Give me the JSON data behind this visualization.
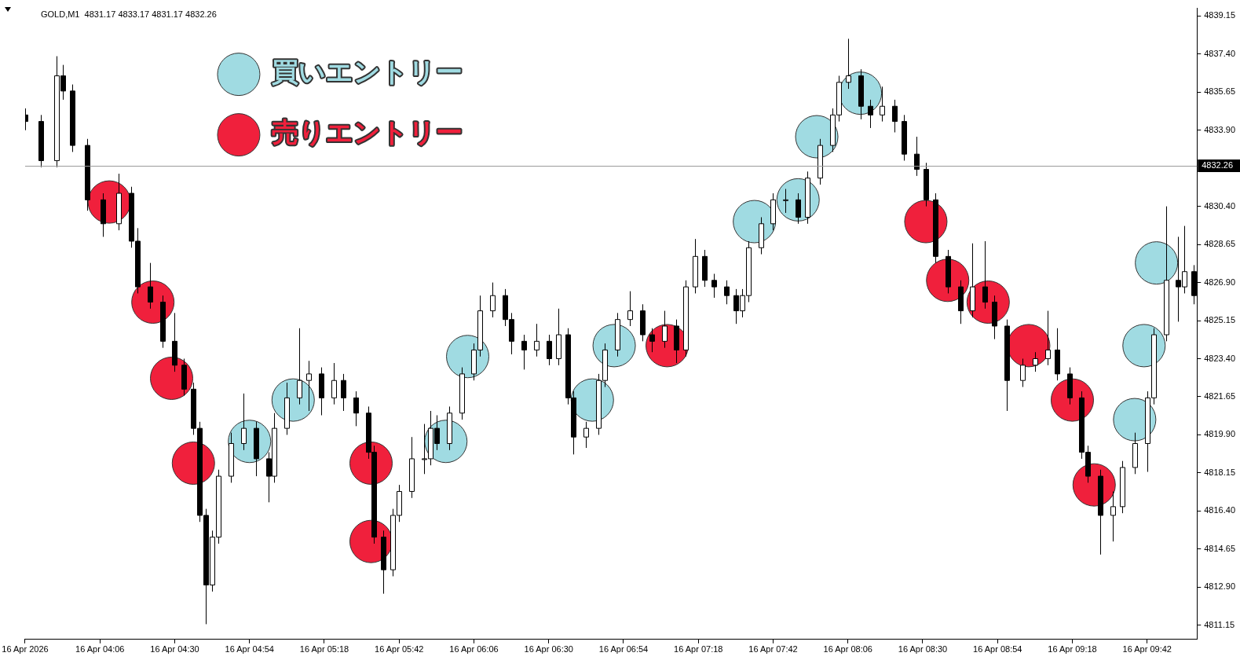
{
  "chart_data": {
    "type": "candlestick",
    "title": "GOLD,M1  4831.17 4833.17 4831.17 4832.26",
    "color": "#000000",
    "legend": "top left",
    "colors": [
      "#000000",
      "#000000",
      "#ffffff",
      "#000000",
      "#000000",
      "#000000",
      "#000000",
      "#ffffff",
      "#000000",
      "#000000",
      "#000000",
      "#000000",
      "#000000",
      "#000000",
      "#000000",
      "#000000",
      "#000000",
      "#ffffff",
      "#ffffff",
      "#ffffff",
      "#ffffff",
      "#000000",
      "#000000",
      "#ffffff",
      "#ffffff",
      "#ffffff",
      "#ffffff",
      "#000000",
      "#ffffff",
      "#000000",
      "#000000",
      "#000000",
      "#000000",
      "#000000",
      "#ffffff",
      "#ffffff",
      "#ffffff",
      "#ffffff",
      "#ffffff",
      "#000000",
      "#ffffff",
      "#ffffff",
      "#ffffff",
      "#ffffff",
      "#ffffff",
      "#000000",
      "#000000",
      "#000000",
      "#ffffff",
      "#000000",
      "#ffffff",
      "#000000",
      "#000000",
      "#ffffff",
      "#ffffff",
      "#ffffff",
      "#ffffff",
      "#ffffff",
      "#000000",
      "#000000",
      "#ffffff",
      "#000000",
      "#ffffff",
      "#ffffff",
      "#000000",
      "#000000",
      "#000000",
      "#000000",
      "#ffffff",
      "#ffffff",
      "#ffffff",
      "#ffffff",
      "#ffffff",
      "#000000",
      "#ffffff",
      "#ffffff",
      "#ffffff",
      "#ffffff",
      "#ffffff",
      "#000000",
      "#000000",
      "#ffffff",
      "#000000",
      "#000000",
      "#000000",
      "#000000",
      "#000000",
      "#000000",
      "#000000",
      "#ffffff",
      "#000000",
      "#000000",
      "#000000",
      "#ffffff",
      "#ffffff",
      "#ffffff",
      "#000000",
      "#000000",
      "#000000",
      "#000000",
      "#000000",
      "#ffffff",
      "#ffffff",
      "#ffffff",
      "#ffffff",
      "#ffffff",
      "#ffffff",
      "#000000",
      "#ffffff",
      "#000000"
    ],
    "marker": "circle",
    "x": [
      "2026-04-16T03:42",
      "2026-04-16T03:47",
      "2026-04-16T03:52",
      "2026-04-16T03:54",
      "2026-04-16T03:57",
      "2026-04-16T04:02",
      "2026-04-16T04:07",
      "2026-04-16T04:12",
      "2026-04-16T04:16",
      "2026-04-16T04:18",
      "2026-04-16T04:22",
      "2026-04-16T04:26",
      "2026-04-16T04:30",
      "2026-04-16T04:33",
      "2026-04-16T04:36",
      "2026-04-16T04:38",
      "2026-04-16T04:40",
      "2026-04-16T04:42",
      "2026-04-16T04:44",
      "2026-04-16T04:48",
      "2026-04-16T04:52",
      "2026-04-16T04:56",
      "2026-04-16T05:00",
      "2026-04-16T05:02",
      "2026-04-16T05:06",
      "2026-04-16T05:10",
      "2026-04-16T05:13",
      "2026-04-16T05:17",
      "2026-04-16T05:21",
      "2026-04-16T05:24",
      "2026-04-16T05:28",
      "2026-04-16T05:32",
      "2026-04-16T05:34",
      "2026-04-16T05:37",
      "2026-04-16T05:40",
      "2026-04-16T05:42",
      "2026-04-16T05:46",
      "2026-04-16T05:50",
      "2026-04-16T05:52",
      "2026-04-16T05:54",
      "2026-04-16T05:58",
      "2026-04-16T06:02",
      "2026-04-16T06:06",
      "2026-04-16T06:08",
      "2026-04-16T06:12",
      "2026-04-16T06:16",
      "2026-04-16T06:18",
      "2026-04-16T06:22",
      "2026-04-16T06:26",
      "2026-04-16T06:30",
      "2026-04-16T06:33",
      "2026-04-16T06:36",
      "2026-04-16T06:38",
      "2026-04-16T06:42",
      "2026-04-16T06:46",
      "2026-04-16T06:48",
      "2026-04-16T06:52",
      "2026-04-16T06:56",
      "2026-04-16T07:00",
      "2026-04-16T07:03",
      "2026-04-16T07:07",
      "2026-04-16T07:11",
      "2026-04-16T07:14",
      "2026-04-16T07:17",
      "2026-04-16T07:20",
      "2026-04-16T07:23",
      "2026-04-16T07:27",
      "2026-04-16T07:30",
      "2026-04-16T07:32",
      "2026-04-16T07:34",
      "2026-04-16T07:38",
      "2026-04-16T07:42",
      "2026-04-16T07:46",
      "2026-04-16T07:50",
      "2026-04-16T07:53",
      "2026-04-16T07:57",
      "2026-04-16T08:01",
      "2026-04-16T08:03",
      "2026-04-16T08:06",
      "2026-04-16T08:10",
      "2026-04-16T08:13",
      "2026-04-16T08:17",
      "2026-04-16T08:21",
      "2026-04-16T08:24",
      "2026-04-16T08:28",
      "2026-04-16T08:31",
      "2026-04-16T08:34",
      "2026-04-16T08:38",
      "2026-04-16T08:42",
      "2026-04-16T08:46",
      "2026-04-16T08:50",
      "2026-04-16T08:53",
      "2026-04-16T08:57",
      "2026-04-16T09:02",
      "2026-04-16T09:06",
      "2026-04-16T09:10",
      "2026-04-16T09:13",
      "2026-04-16T09:17",
      "2026-04-16T09:21",
      "2026-04-16T09:23",
      "2026-04-16T09:27",
      "2026-04-16T09:31",
      "2026-04-16T09:34",
      "2026-04-16T09:38",
      "2026-04-16T09:42",
      "2026-04-16T09:44",
      "2026-04-16T09:48",
      "2026-04-16T09:52",
      "2026-04-16T09:54",
      "2026-04-16T09:57"
    ],
    "ohlc": [
      [
        4834.6,
        4834.9,
        4833.9,
        4834.3
      ],
      [
        4834.3,
        4834.6,
        4832.2,
        4832.5
      ],
      [
        4832.5,
        4837.3,
        4832.2,
        4836.4
      ],
      [
        4836.4,
        4836.9,
        4835.3,
        4835.7
      ],
      [
        4835.7,
        4836.0,
        4832.9,
        4833.2
      ],
      [
        4833.2,
        4833.5,
        4830.2,
        4830.7
      ],
      [
        4830.7,
        4831.0,
        4829.0,
        4829.6
      ],
      [
        4829.6,
        4831.9,
        4829.3,
        4831.0
      ],
      [
        4831.0,
        4831.3,
        4828.5,
        4828.8
      ],
      [
        4828.8,
        4829.4,
        4826.4,
        4826.7
      ],
      [
        4826.7,
        4827.8,
        4825.7,
        4826.0
      ],
      [
        4826.0,
        4826.3,
        4823.9,
        4824.2
      ],
      [
        4824.2,
        4825.5,
        4822.8,
        4823.1
      ],
      [
        4823.1,
        4823.4,
        4821.7,
        4822.0
      ],
      [
        4822.0,
        4822.3,
        4819.9,
        4820.2
      ],
      [
        4820.2,
        4820.5,
        4815.9,
        4816.2
      ],
      [
        4816.2,
        4816.5,
        4811.2,
        4813.0
      ],
      [
        4813.0,
        4815.5,
        4812.7,
        4815.2
      ],
      [
        4815.2,
        4818.3,
        4814.9,
        4818.0
      ],
      [
        4818.0,
        4820.0,
        4817.7,
        4819.5
      ],
      [
        4819.5,
        4821.8,
        4819.2,
        4820.2
      ],
      [
        4820.2,
        4820.5,
        4818.0,
        4818.8
      ],
      [
        4818.8,
        4819.1,
        4816.8,
        4818.0
      ],
      [
        4818.0,
        4820.9,
        4817.7,
        4820.2
      ],
      [
        4820.2,
        4822.3,
        4819.9,
        4821.6
      ],
      [
        4821.6,
        4824.8,
        4821.3,
        4822.4
      ],
      [
        4822.4,
        4823.3,
        4821.0,
        4822.7
      ],
      [
        4822.7,
        4823.0,
        4820.8,
        4821.6
      ],
      [
        4821.6,
        4823.2,
        4821.3,
        4822.4
      ],
      [
        4822.4,
        4822.7,
        4821.0,
        4821.6
      ],
      [
        4821.6,
        4821.9,
        4820.3,
        4820.9
      ],
      [
        4820.9,
        4821.2,
        4818.8,
        4819.1
      ],
      [
        4819.1,
        4819.4,
        4814.9,
        4815.2
      ],
      [
        4815.2,
        4815.5,
        4812.6,
        4813.7
      ],
      [
        4813.7,
        4816.5,
        4813.4,
        4816.2
      ],
      [
        4816.2,
        4817.6,
        4815.9,
        4817.3
      ],
      [
        4817.3,
        4819.8,
        4817.0,
        4818.8
      ],
      [
        4818.8,
        4820.4,
        4818.1,
        4818.8
      ],
      [
        4818.8,
        4821.0,
        4818.5,
        4820.2
      ],
      [
        4820.2,
        4820.8,
        4819.2,
        4819.5
      ],
      [
        4819.5,
        4821.2,
        4819.2,
        4820.9
      ],
      [
        4820.9,
        4823.0,
        4820.6,
        4822.7
      ],
      [
        4822.7,
        4824.1,
        4822.4,
        4823.8
      ],
      [
        4823.8,
        4826.3,
        4823.5,
        4825.6
      ],
      [
        4825.6,
        4826.9,
        4825.3,
        4826.3
      ],
      [
        4826.3,
        4826.6,
        4824.9,
        4825.2
      ],
      [
        4825.2,
        4825.5,
        4823.6,
        4824.2
      ],
      [
        4824.2,
        4824.5,
        4822.9,
        4823.8
      ],
      [
        4823.8,
        4825.0,
        4823.5,
        4824.2
      ],
      [
        4824.2,
        4824.5,
        4823.1,
        4823.4
      ],
      [
        4823.4,
        4825.7,
        4823.1,
        4824.5
      ],
      [
        4824.5,
        4824.8,
        4821.3,
        4821.6
      ],
      [
        4821.6,
        4821.9,
        4819.0,
        4819.8
      ],
      [
        4819.8,
        4820.5,
        4819.3,
        4820.2
      ],
      [
        4820.2,
        4822.7,
        4819.9,
        4822.4
      ],
      [
        4822.4,
        4824.1,
        4822.1,
        4823.8
      ],
      [
        4823.8,
        4825.5,
        4823.5,
        4825.2
      ],
      [
        4825.2,
        4826.5,
        4824.9,
        4825.6
      ],
      [
        4825.6,
        4825.9,
        4824.2,
        4824.5
      ],
      [
        4824.5,
        4824.8,
        4823.7,
        4824.2
      ],
      [
        4824.2,
        4825.6,
        4823.9,
        4824.9
      ],
      [
        4824.9,
        4825.2,
        4823.2,
        4823.8
      ],
      [
        4823.8,
        4827.0,
        4823.5,
        4826.7
      ],
      [
        4826.7,
        4828.9,
        4826.4,
        4828.1
      ],
      [
        4828.1,
        4828.4,
        4826.7,
        4827.0
      ],
      [
        4827.0,
        4827.3,
        4826.2,
        4826.7
      ],
      [
        4826.7,
        4827.0,
        4825.9,
        4826.3
      ],
      [
        4826.3,
        4826.6,
        4825.0,
        4825.6
      ],
      [
        4825.6,
        4826.6,
        4825.3,
        4826.3
      ],
      [
        4826.3,
        4828.8,
        4826.0,
        4828.5
      ],
      [
        4828.5,
        4829.9,
        4828.2,
        4829.6
      ],
      [
        4829.6,
        4831.0,
        4829.3,
        4830.7
      ],
      [
        4830.7,
        4831.2,
        4830.1,
        4830.7
      ],
      [
        4830.7,
        4831.0,
        4829.6,
        4829.9
      ],
      [
        4829.9,
        4832.0,
        4829.6,
        4831.7
      ],
      [
        4831.7,
        4833.5,
        4831.4,
        4833.2
      ],
      [
        4833.2,
        4834.9,
        4832.9,
        4834.6
      ],
      [
        4834.6,
        4836.4,
        4834.3,
        4836.1
      ],
      [
        4836.1,
        4838.1,
        4835.8,
        4836.4
      ],
      [
        4836.4,
        4836.7,
        4834.4,
        4835.0
      ],
      [
        4835.0,
        4835.3,
        4834.0,
        4834.6
      ],
      [
        4834.6,
        4835.9,
        4834.3,
        4835.0
      ],
      [
        4835.0,
        4835.3,
        4833.8,
        4834.3
      ],
      [
        4834.3,
        4834.6,
        4832.5,
        4832.8
      ],
      [
        4832.8,
        4833.6,
        4831.8,
        4832.1
      ],
      [
        4832.1,
        4832.4,
        4830.4,
        4830.7
      ],
      [
        4830.7,
        4831.0,
        4827.8,
        4828.1
      ],
      [
        4828.1,
        4828.4,
        4826.4,
        4826.7
      ],
      [
        4826.7,
        4827.0,
        4825.0,
        4825.6
      ],
      [
        4825.6,
        4828.7,
        4825.3,
        4826.7
      ],
      [
        4826.7,
        4828.8,
        4825.7,
        4826.0
      ],
      [
        4826.0,
        4826.3,
        4824.3,
        4824.9
      ],
      [
        4824.9,
        4825.2,
        4821.0,
        4822.4
      ],
      [
        4822.4,
        4823.4,
        4822.1,
        4823.1
      ],
      [
        4823.1,
        4823.7,
        4822.8,
        4823.4
      ],
      [
        4823.4,
        4825.6,
        4823.1,
        4823.8
      ],
      [
        4823.8,
        4824.8,
        4822.4,
        4822.7
      ],
      [
        4822.7,
        4823.0,
        4821.3,
        4821.6
      ],
      [
        4821.6,
        4821.9,
        4818.8,
        4819.1
      ],
      [
        4819.1,
        4819.4,
        4817.7,
        4818.0
      ],
      [
        4818.0,
        4818.3,
        4814.4,
        4816.2
      ],
      [
        4816.2,
        4817.3,
        4815.0,
        4816.6
      ],
      [
        4816.6,
        4818.7,
        4816.3,
        4818.4
      ],
      [
        4818.4,
        4820.0,
        4818.1,
        4819.5
      ],
      [
        4819.5,
        4821.9,
        4818.2,
        4821.6
      ],
      [
        4821.6,
        4824.8,
        4821.3,
        4824.5
      ],
      [
        4824.5,
        4830.4,
        4824.2,
        4827.0
      ],
      [
        4827.0,
        4829.0,
        4825.1,
        4826.7
      ],
      [
        4826.7,
        4829.5,
        4826.4,
        4827.4
      ],
      [
        4827.4,
        4827.7,
        4825.9,
        4826.3
      ]
    ],
    "series": [
      {
        "type": "scatter",
        "name": "買いエントリー",
        "color": "#a0dbe2",
        "x": [
          "2026-04-16T04:54",
          "2026-04-16T05:08",
          "2026-04-16T05:57",
          "2026-04-16T06:04",
          "2026-04-16T06:44",
          "2026-04-16T06:51",
          "2026-04-16T07:36",
          "2026-04-16T07:50",
          "2026-04-16T07:56",
          "2026-04-16T08:10",
          "2026-04-16T09:38",
          "2026-04-16T09:41",
          "2026-04-16T09:45"
        ],
        "values": [
          4819.6,
          4821.5,
          4819.6,
          4823.5,
          4821.5,
          4824.0,
          4829.7,
          4830.7,
          4833.6,
          4835.6,
          4820.6,
          4824.0,
          4827.8
        ]
      },
      {
        "type": "scatter",
        "name": "売りエントリー",
        "color": "#f0203c",
        "x": [
          "2026-04-16T04:09",
          "2026-04-16T04:23",
          "2026-04-16T04:29",
          "2026-04-16T04:36",
          "2026-04-16T05:33",
          "2026-04-16T05:33",
          "2026-04-16T07:08",
          "2026-04-16T08:31",
          "2026-04-16T08:38",
          "2026-04-16T08:51",
          "2026-04-16T09:04",
          "2026-04-16T09:18",
          "2026-04-16T09:25"
        ],
        "values": [
          4830.6,
          4826.0,
          4822.5,
          4818.6,
          4818.6,
          4815.0,
          4824.0,
          4829.7,
          4827.0,
          4826.0,
          4824.0,
          4821.5,
          4817.6
        ]
      }
    ],
    "xlim": [
      "2026-04-16T03:42",
      "2026-04-16T09:58"
    ],
    "xticks": [
      {
        "value": "2026-04-16T03:42",
        "label": "16 Apr 2026"
      },
      {
        "value": "2026-04-16T04:06",
        "label": "16 Apr 04:06"
      },
      {
        "value": "2026-04-16T04:30",
        "label": "16 Apr 04:30"
      },
      {
        "value": "2026-04-16T04:54",
        "label": "16 Apr 04:54"
      },
      {
        "value": "2026-04-16T05:18",
        "label": "16 Apr 05:18"
      },
      {
        "value": "2026-04-16T05:42",
        "label": "16 Apr 05:42"
      },
      {
        "value": "2026-04-16T06:06",
        "label": "16 Apr 06:06"
      },
      {
        "value": "2026-04-16T06:30",
        "label": "16 Apr 06:30"
      },
      {
        "value": "2026-04-16T06:54",
        "label": "16 Apr 06:54"
      },
      {
        "value": "2026-04-16T07:18",
        "label": "16 Apr 07:18"
      },
      {
        "value": "2026-04-16T07:42",
        "label": "16 Apr 07:42"
      },
      {
        "value": "2026-04-16T08:06",
        "label": "16 Apr 08:06"
      },
      {
        "value": "2026-04-16T08:30",
        "label": "16 Apr 08:30"
      },
      {
        "value": "2026-04-16T08:54",
        "label": "16 Apr 08:54"
      },
      {
        "value": "2026-04-16T09:18",
        "label": "16 Apr 09:18"
      },
      {
        "value": "2026-04-16T09:42",
        "label": "16 Apr 09:42"
      }
    ],
    "ylim": [
      4810.5,
      4839.5
    ],
    "yticks": [
      {
        "value": 4811.15,
        "label": "4811.15"
      },
      {
        "value": 4812.9,
        "label": "4812.90"
      },
      {
        "value": 4814.65,
        "label": "4814.65"
      },
      {
        "value": 4816.4,
        "label": "4816.40"
      },
      {
        "value": 4818.15,
        "label": "4818.15"
      },
      {
        "value": 4819.9,
        "label": "4819.90"
      },
      {
        "value": 4821.65,
        "label": "4821.65"
      },
      {
        "value": 4823.4,
        "label": "4823.40"
      },
      {
        "value": 4825.15,
        "label": "4825.15"
      },
      {
        "value": 4826.9,
        "label": "4826.90"
      },
      {
        "value": 4828.65,
        "label": "4828.65"
      },
      {
        "value": 4830.4,
        "label": "4830.40"
      },
      {
        "value": 4833.9,
        "label": "4833.90"
      },
      {
        "value": 4835.65,
        "label": "4835.65"
      },
      {
        "value": 4837.4,
        "label": "4837.40"
      },
      {
        "value": 4839.15,
        "label": "4839.15"
      }
    ],
    "ref_lines": [
      {
        "axis": "y",
        "value": 4832.26,
        "label": "4832.26"
      }
    ]
  }
}
